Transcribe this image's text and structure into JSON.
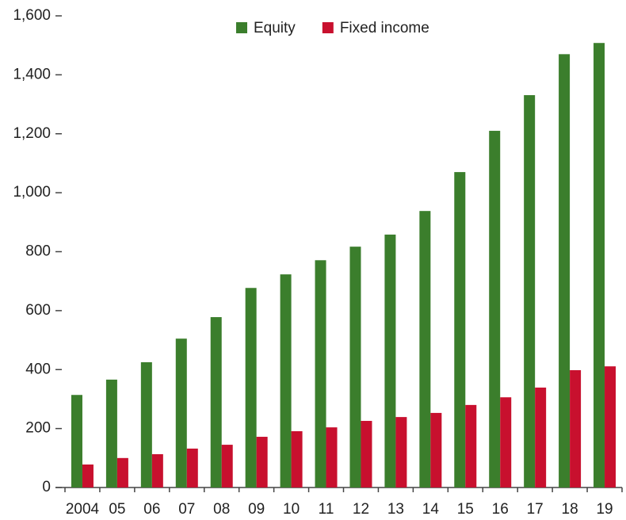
{
  "chart_data": {
    "type": "bar",
    "categories": [
      "2004",
      "05",
      "06",
      "07",
      "08",
      "09",
      "10",
      "11",
      "12",
      "13",
      "14",
      "15",
      "16",
      "17",
      "18",
      "19"
    ],
    "series": [
      {
        "name": "Equity",
        "color": "#3b7e2c",
        "values": [
          314,
          366,
          425,
          505,
          578,
          677,
          723,
          771,
          817,
          858,
          938,
          1070,
          1210,
          1331,
          1470,
          1508
        ]
      },
      {
        "name": "Fixed income",
        "color": "#c8102e",
        "values": [
          78,
          100,
          113,
          132,
          145,
          172,
          191,
          204,
          226,
          239,
          253,
          280,
          306,
          339,
          398,
          411
        ]
      }
    ],
    "ylim": [
      0,
      1600
    ],
    "yticks": [
      0,
      200,
      400,
      600,
      800,
      {
        "value": 1000,
        "label": "1,000"
      },
      {
        "value": 1200,
        "label": "1,200"
      },
      {
        "value": 1400,
        "label": "1,400"
      },
      {
        "value": 1600,
        "label": "1,600"
      }
    ],
    "legend": "top"
  }
}
